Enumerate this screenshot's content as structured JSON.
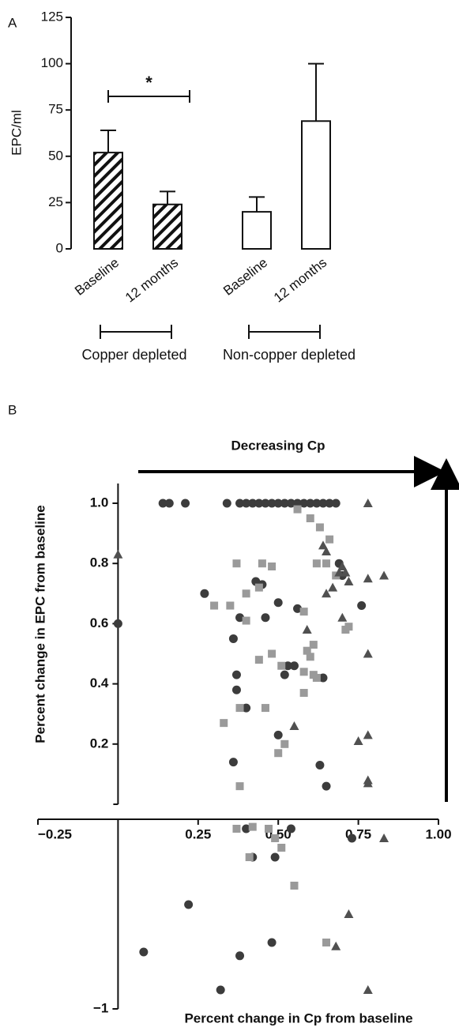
{
  "chart_data": [
    {
      "type": "bar",
      "panel_label": "A",
      "ylabel": "EPC/ml",
      "categories": [
        "Baseline",
        "12 months",
        "Baseline",
        "12 months"
      ],
      "values": [
        52,
        24,
        20,
        69
      ],
      "errors": [
        12,
        7,
        8,
        31
      ],
      "hatch": [
        true,
        true,
        false,
        false
      ],
      "color": "#111111",
      "ylim": [
        0,
        125
      ],
      "yticks": [
        0,
        25,
        50,
        75,
        100,
        125
      ],
      "significance": {
        "label": "*",
        "categories": [
          0,
          1
        ]
      },
      "groups": [
        {
          "label": "Copper depleted",
          "categories": [
            0,
            1
          ]
        },
        {
          "label": "Non-copper depleted",
          "categories": [
            2,
            3
          ]
        }
      ]
    },
    {
      "type": "scatter",
      "panel_label": "B",
      "title": "Decreasing Cp",
      "xlabel": "Percent change in Cp from baseline",
      "ylabel": "Percent change in EPC from baseline",
      "xlim": [
        -0.25,
        1
      ],
      "ylim": [
        -1,
        1
      ],
      "xticks": [
        {
          "value": -0.25,
          "label": "−0.25"
        },
        0.25,
        {
          "value": 0.5,
          "label": "0.50"
        },
        0.75,
        {
          "value": 1,
          "label": "1.00"
        }
      ],
      "yticks": [
        {
          "value": 1,
          "label": "1.0"
        },
        0.8,
        0.6,
        0.4,
        0.2,
        {
          "value": -1,
          "label": "−1"
        }
      ],
      "series": [
        {
          "marker": "circle",
          "color": "#3c3c3c",
          "x": [
            0.14,
            0.16,
            0.21,
            0.34,
            0.38,
            0.4,
            0.42,
            0.44,
            0.46,
            0.48,
            0.5,
            0.52,
            0.54,
            0.56,
            0.58,
            0.6,
            0.62,
            0.64,
            0.66,
            0.68,
            0,
            0.27,
            0.38,
            0.43,
            0.45,
            0.46,
            0.5,
            0.56,
            0.69,
            0.7,
            0.76,
            0.36,
            0.37,
            0.37,
            0.4,
            0.52,
            0.53,
            0.55,
            0.64,
            0.5,
            0.63,
            0.65,
            0.36,
            0.4,
            0.54,
            0.73,
            0.42,
            0.49,
            0.22,
            0.08,
            0.38,
            0.48,
            0.32
          ],
          "y": [
            1,
            1,
            1,
            1,
            1,
            1,
            1,
            1,
            1,
            1,
            1,
            1,
            1,
            1,
            1,
            1,
            1,
            1,
            1,
            1,
            0.6,
            0.7,
            0.62,
            0.74,
            0.73,
            0.62,
            0.67,
            0.65,
            0.8,
            0.76,
            0.66,
            0.55,
            0.43,
            0.38,
            0.32,
            0.43,
            0.46,
            0.46,
            0.42,
            0.23,
            0.13,
            0.06,
            0.14,
            -0.05,
            -0.05,
            -0.1,
            -0.2,
            -0.2,
            -0.45,
            -0.7,
            -0.72,
            -0.65,
            -0.9
          ]
        },
        {
          "marker": "square",
          "color": "#9a9a9a",
          "x": [
            0.56,
            0.6,
            0.63,
            0.66,
            0.37,
            0.45,
            0.48,
            0.62,
            0.65,
            0.68,
            0.4,
            0.44,
            0.35,
            0.3,
            0.4,
            0.58,
            0.71,
            0.72,
            0.61,
            0.59,
            0.6,
            0.44,
            0.48,
            0.51,
            0.58,
            0.61,
            0.62,
            0.58,
            0.38,
            0.46,
            0.33,
            0.52,
            0.5,
            0.38,
            0.37,
            0.42,
            0.47,
            0.49,
            0.41,
            0.51,
            0.55,
            0.65
          ],
          "y": [
            0.98,
            0.95,
            0.92,
            0.88,
            0.8,
            0.8,
            0.79,
            0.8,
            0.8,
            0.76,
            0.7,
            0.72,
            0.66,
            0.66,
            0.61,
            0.64,
            0.58,
            0.59,
            0.53,
            0.51,
            0.49,
            0.48,
            0.5,
            0.46,
            0.44,
            0.43,
            0.42,
            0.37,
            0.32,
            0.32,
            0.27,
            0.2,
            0.17,
            0.06,
            -0.05,
            -0.04,
            -0.05,
            -0.1,
            -0.2,
            -0.15,
            -0.35,
            -0.65
          ]
        },
        {
          "marker": "triangle",
          "color": "#505050",
          "x": [
            0,
            0.78,
            0.65,
            0.64,
            0.69,
            0.7,
            0.71,
            0.72,
            0.78,
            0.83,
            0.67,
            0.65,
            0.7,
            0.78,
            0.59,
            0.78,
            0.75,
            0.55,
            0.78,
            0.78,
            0.83,
            0.68,
            0.72,
            0.78
          ],
          "y": [
            0.83,
            1,
            0.84,
            0.86,
            0.77,
            0.79,
            0.77,
            0.74,
            0.75,
            0.76,
            0.72,
            0.7,
            0.62,
            0.5,
            0.58,
            0.23,
            0.21,
            0.26,
            0.08,
            0.07,
            -0.1,
            -0.67,
            -0.5,
            -0.9
          ]
        }
      ]
    }
  ]
}
